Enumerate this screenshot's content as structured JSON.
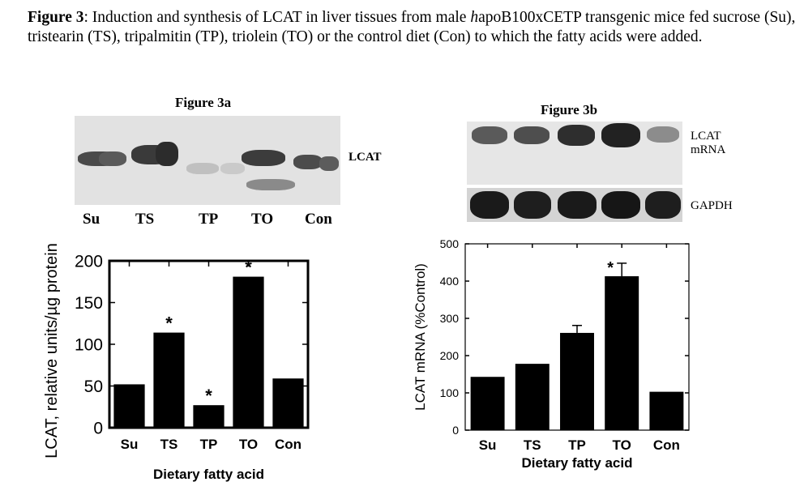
{
  "caption": {
    "figure_label": "Figure 3",
    "text_part1": ": Induction and synthesis of LCAT  in liver tissues from male ",
    "italic_h": "h",
    "text_part2": "apoB100xCETP transgenic mice fed sucrose (Su), tristearin (TS), tripalmitin (TP), triolein (TO) or the control diet (Con) to which the fatty acids were added."
  },
  "panel_a": {
    "title": "Figure 3a",
    "blot_label": "LCAT",
    "lane_labels": [
      "Su",
      "TS",
      "TP",
      "TO",
      "Con"
    ]
  },
  "panel_b": {
    "title": "Figure 3b",
    "blot_label_top_1": "LCAT",
    "blot_label_top_2": "mRNA",
    "blot_label_bottom": "GAPDH"
  },
  "chart_data": [
    {
      "type": "bar",
      "categories": [
        "Su",
        "TS",
        "TP",
        "TO",
        "Con"
      ],
      "values": [
        52,
        114,
        27,
        181,
        59
      ],
      "significance": [
        "",
        "*",
        "*",
        "*",
        ""
      ],
      "xlabel": "Dietary fatty acid",
      "ylabel": "LCAT, relative units/µg protein",
      "ylim": [
        0,
        200
      ],
      "yticks": [
        0,
        50,
        100,
        150,
        200
      ],
      "grid": false
    },
    {
      "type": "bar",
      "categories": [
        "Su",
        "TS",
        "TP",
        "TO",
        "Con"
      ],
      "values": [
        143,
        178,
        261,
        413,
        103
      ],
      "errors": [
        0,
        0,
        20,
        35,
        0
      ],
      "significance": [
        "",
        "",
        "",
        "*",
        ""
      ],
      "xlabel": "Dietary fatty acid",
      "ylabel": "LCAT mRNA (%Control)",
      "ylim": [
        0,
        500
      ],
      "yticks": [
        0,
        100,
        200,
        300,
        400,
        500
      ],
      "grid": false
    }
  ]
}
